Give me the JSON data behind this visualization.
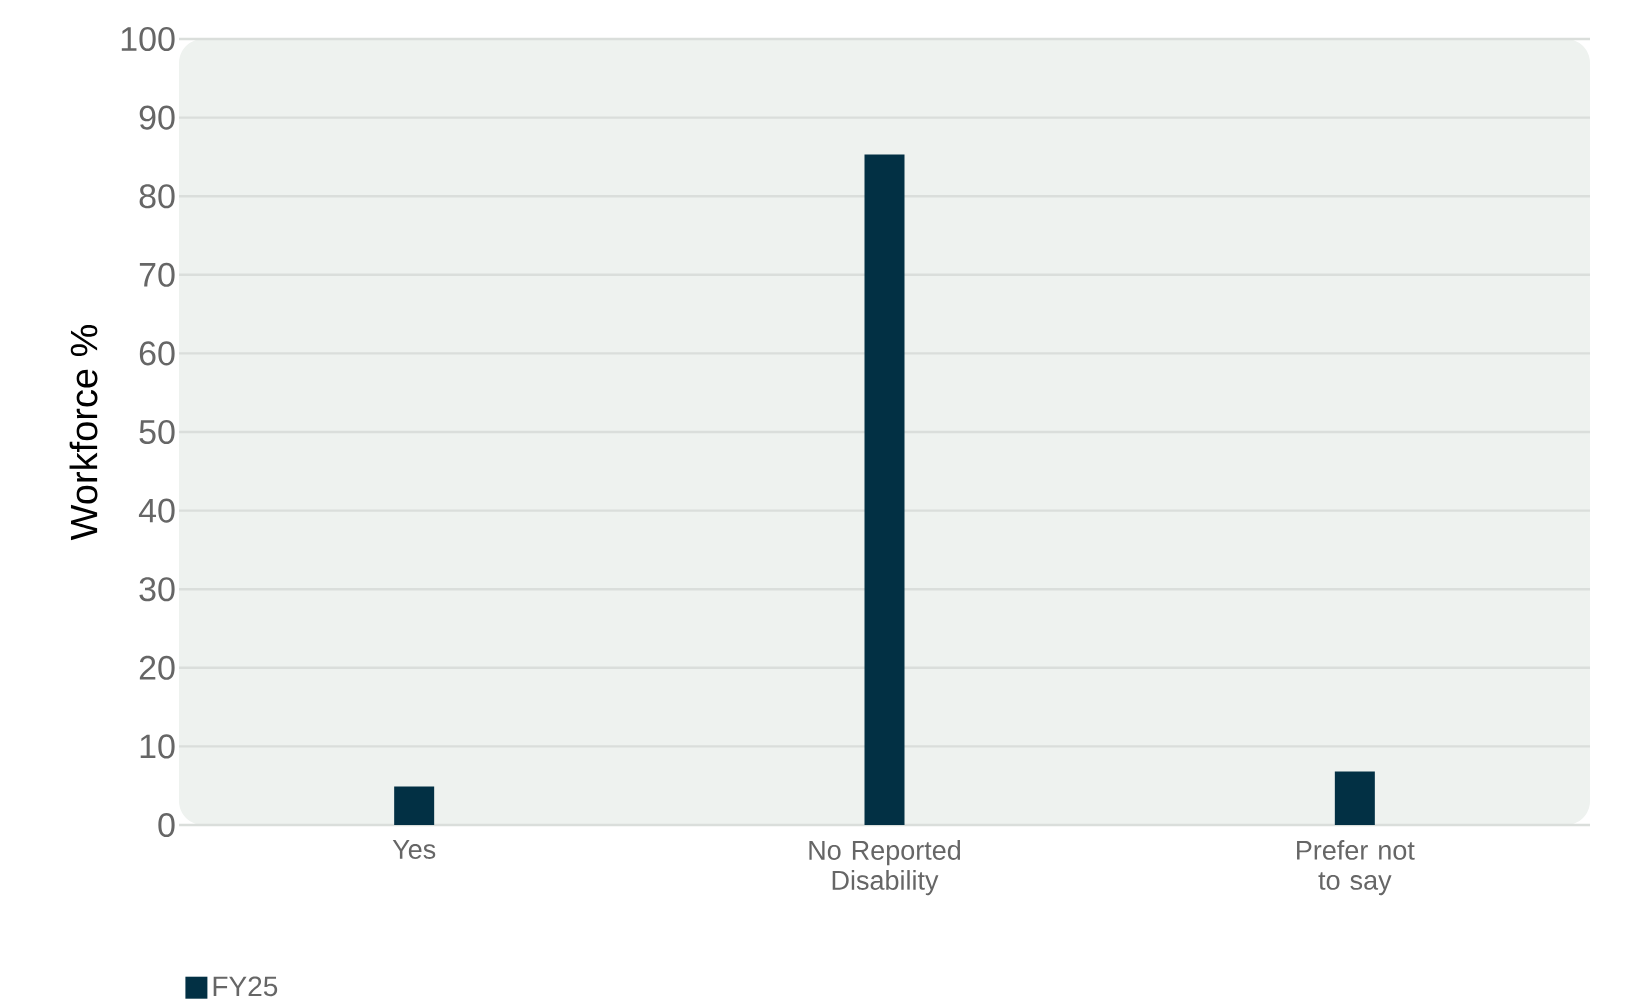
{
  "chart_data": {
    "type": "bar",
    "ylabel": "Workforce %",
    "categories": [
      "Yes",
      "No Reported Disability",
      "Prefer not to say"
    ],
    "series": [
      {
        "name": "FY25",
        "color": "#023044",
        "values": [
          4.9,
          85.3,
          6.8
        ]
      }
    ],
    "ylim": [
      0,
      100
    ],
    "yticks": [
      0,
      10,
      20,
      30,
      40,
      50,
      60,
      70,
      80,
      90,
      100
    ],
    "grid": "y",
    "legend": "bottom left"
  }
}
